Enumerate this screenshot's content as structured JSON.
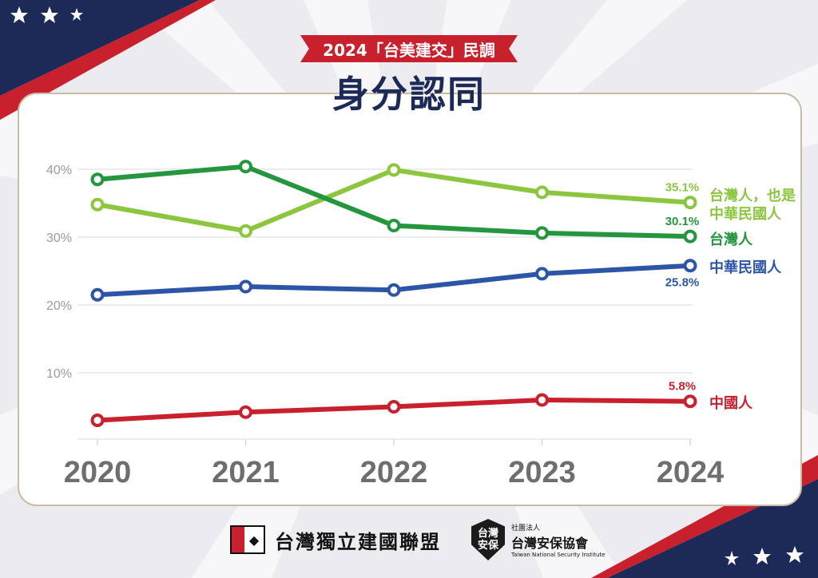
{
  "banner": "2024「台美建交」民調",
  "title": "身分認同",
  "colors": {
    "navy": "#1d2a57",
    "red": "#c8202d",
    "light_green": "#8cc63f",
    "dark_green": "#23963e",
    "blue": "#2d55a7",
    "china_red": "#c8202d"
  },
  "chart_data": {
    "type": "line",
    "title": "身分認同",
    "x": [
      "2020",
      "2021",
      "2022",
      "2023",
      "2024"
    ],
    "y_ticks": [
      "10%",
      "20%",
      "30%",
      "40%"
    ],
    "ylim": [
      0,
      45
    ],
    "grid": true,
    "series": [
      {
        "name": "台灣人，也是中華民國人",
        "label_lines": [
          "台灣人，也是",
          "中華民國人"
        ],
        "color": "#8cc63f",
        "values": [
          34.8,
          30.9,
          39.9,
          36.6,
          35.1
        ],
        "end_label": "35.1%"
      },
      {
        "name": "台灣人",
        "label_lines": [
          "台灣人"
        ],
        "color": "#23963e",
        "values": [
          38.5,
          40.4,
          31.7,
          30.6,
          30.1
        ],
        "end_label": "30.1%"
      },
      {
        "name": "中華民國人",
        "label_lines": [
          "中華民國人"
        ],
        "color": "#2d55a7",
        "values": [
          21.5,
          22.7,
          22.2,
          24.6,
          25.8
        ],
        "end_label": "25.8%"
      },
      {
        "name": "中國人",
        "label_lines": [
          "中國人"
        ],
        "color": "#c8202d",
        "values": [
          3.0,
          4.2,
          5.0,
          6.0,
          5.8
        ],
        "end_label": "5.8%"
      }
    ]
  },
  "footer": {
    "org1": "台灣獨立建國聯盟",
    "org2_small": "社團法人",
    "org2_name": "台灣安保協會",
    "org2_en": "Taiwan National Security Institute",
    "shield_text_1": "台灣",
    "shield_text_2": "安保"
  }
}
